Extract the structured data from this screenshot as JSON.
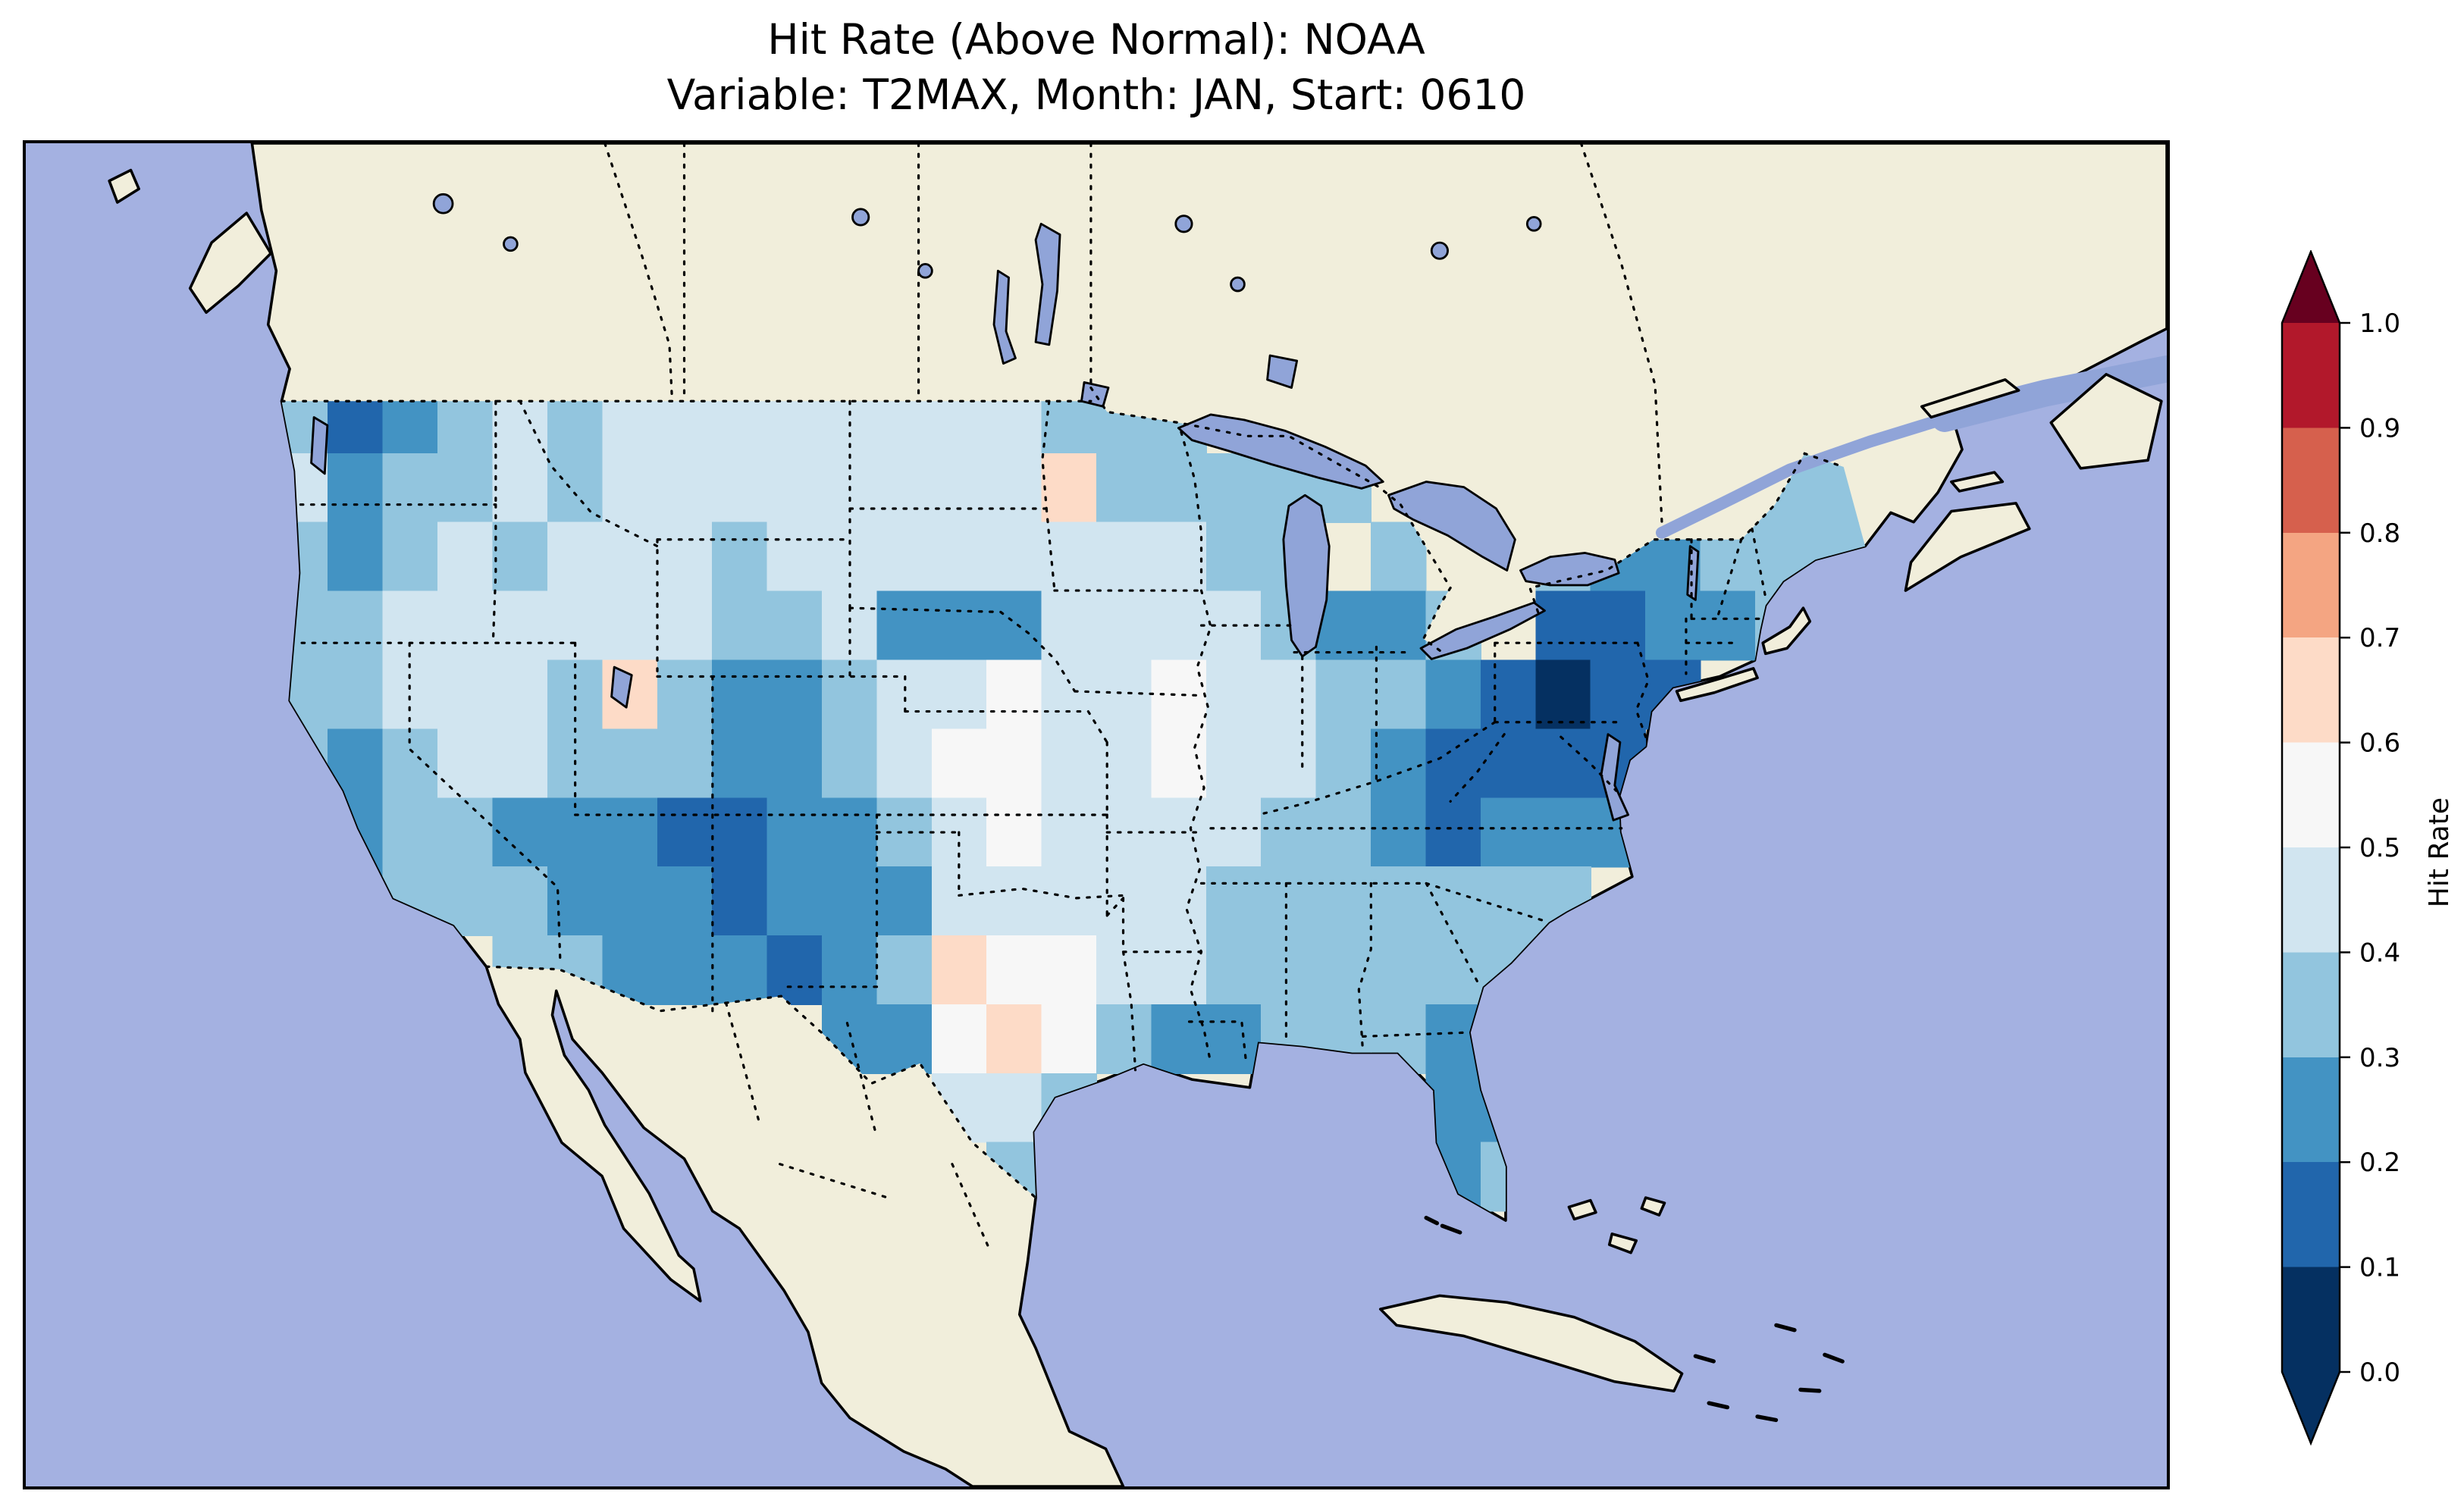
{
  "title": {
    "line1": "Hit Rate (Above Normal): NOAA",
    "line2": "Variable: T2MAX, Month: JAN, Start: 0610"
  },
  "colorbar": {
    "label": "Hit Rate",
    "tick_labels": [
      "1.0",
      "0.9",
      "0.8",
      "0.7",
      "0.6",
      "0.5",
      "0.4",
      "0.3",
      "0.2",
      "0.1",
      "0.0"
    ],
    "segment_colors_top_to_bottom": [
      "#b2182b",
      "#d6604d",
      "#f4a582",
      "#fddbc7",
      "#f7f7f7",
      "#d1e5f0",
      "#92c5de",
      "#4393c3",
      "#2166ac",
      "#053061"
    ],
    "extend_over_color": "#67001f",
    "extend_under_color": "#053061"
  },
  "map_colors": {
    "ocean": "#a4b1e1",
    "land": "#f1eedb",
    "lake": "#90a4d8",
    "coastline": "#000000",
    "border": "#000000"
  },
  "chart_data": {
    "type": "heatmap",
    "title": "Hit Rate (Above Normal): NOAA",
    "subtitle": "Variable: T2MAX, Month: JAN, Start: 0610",
    "source": "NOAA",
    "variable": "T2MAX",
    "month": "JAN",
    "start": "0610",
    "region": "Contiguous United States",
    "colorbar_label": "Hit Rate",
    "value_range": [
      0.0,
      1.0
    ],
    "bin_edges": [
      0.0,
      0.1,
      0.2,
      0.3,
      0.4,
      0.5,
      0.6,
      0.7,
      0.8,
      0.9,
      1.0
    ],
    "bin_colors_low_to_high": [
      "#053061",
      "#2166ac",
      "#4393c3",
      "#92c5de",
      "#d1e5f0",
      "#f7f7f7",
      "#fddbc7",
      "#f4a582",
      "#d6604d",
      "#b2182b"
    ],
    "grid": {
      "lon_start": -125,
      "lon_step": 2,
      "lat_start": 49.5,
      "lat_step": -2,
      "values": [
        [
          0.35,
          0.15,
          0.25,
          0.35,
          0.45,
          0.35,
          0.45,
          0.45,
          0.45,
          0.45,
          0.45,
          0.45,
          0.45,
          0.45,
          0.35,
          0.35,
          0.35,
          null,
          null,
          null,
          null,
          null,
          null,
          null,
          null,
          null,
          null,
          0.35,
          0.35
        ],
        [
          0.45,
          0.25,
          0.35,
          0.35,
          0.45,
          0.35,
          0.45,
          0.45,
          0.45,
          0.45,
          0.45,
          0.45,
          0.45,
          0.45,
          0.65,
          0.35,
          0.35,
          0.35,
          0.35,
          0.35,
          null,
          null,
          null,
          null,
          null,
          null,
          0.35,
          0.35,
          0.35
        ],
        [
          0.35,
          0.25,
          0.35,
          0.45,
          0.35,
          0.45,
          0.45,
          0.45,
          0.35,
          0.45,
          0.45,
          0.45,
          0.45,
          0.45,
          0.45,
          0.45,
          0.45,
          0.35,
          0.35,
          null,
          0.35,
          null,
          null,
          0.35,
          0.25,
          0.25,
          0.35,
          0.35,
          0.35
        ],
        [
          0.35,
          0.35,
          0.45,
          0.45,
          0.45,
          0.45,
          0.45,
          0.45,
          0.35,
          0.35,
          0.45,
          0.25,
          0.25,
          0.25,
          0.45,
          0.45,
          0.45,
          0.45,
          0.35,
          0.25,
          0.25,
          0.35,
          null,
          0.15,
          0.15,
          0.25,
          0.25,
          0.35,
          null
        ],
        [
          0.35,
          0.35,
          0.45,
          0.45,
          0.45,
          0.35,
          0.65,
          0.35,
          0.25,
          0.25,
          0.35,
          0.45,
          0.45,
          0.55,
          0.45,
          0.45,
          0.55,
          0.45,
          0.45,
          0.35,
          0.35,
          0.25,
          0.15,
          0.05,
          0.15,
          0.15,
          null,
          null,
          null
        ],
        [
          0.35,
          0.25,
          0.35,
          0.45,
          0.45,
          0.35,
          0.35,
          0.35,
          0.25,
          0.25,
          0.35,
          0.45,
          0.55,
          0.55,
          0.45,
          0.45,
          0.55,
          0.45,
          0.45,
          0.35,
          0.25,
          0.15,
          0.15,
          0.15,
          0.15,
          null,
          null,
          null,
          null
        ],
        [
          0.35,
          0.25,
          0.35,
          0.35,
          0.25,
          0.25,
          0.25,
          0.15,
          0.15,
          0.25,
          0.25,
          0.35,
          0.45,
          0.55,
          0.45,
          0.45,
          0.45,
          0.45,
          0.35,
          0.35,
          0.25,
          0.15,
          0.25,
          0.25,
          0.25,
          null,
          null,
          null,
          null
        ],
        [
          null,
          0.25,
          0.35,
          0.35,
          0.35,
          0.25,
          0.25,
          0.25,
          0.15,
          0.25,
          0.25,
          0.25,
          0.45,
          0.45,
          0.45,
          0.45,
          0.45,
          0.35,
          0.35,
          0.35,
          0.35,
          0.35,
          0.35,
          0.35,
          null,
          null,
          null,
          null,
          null
        ],
        [
          null,
          null,
          null,
          null,
          0.35,
          0.35,
          0.25,
          0.25,
          0.25,
          0.15,
          0.25,
          0.35,
          0.65,
          0.55,
          0.55,
          0.45,
          0.45,
          0.35,
          0.35,
          0.35,
          0.35,
          0.35,
          0.35,
          null,
          null,
          null,
          null,
          null,
          null
        ],
        [
          null,
          null,
          null,
          null,
          null,
          null,
          null,
          null,
          null,
          null,
          0.25,
          0.25,
          0.55,
          0.65,
          0.55,
          0.35,
          0.25,
          0.25,
          0.35,
          0.35,
          0.35,
          0.25,
          0.35,
          null,
          null,
          null,
          null,
          null,
          null
        ],
        [
          null,
          null,
          null,
          null,
          null,
          null,
          null,
          null,
          null,
          null,
          null,
          null,
          0.45,
          0.45,
          0.35,
          null,
          null,
          null,
          null,
          null,
          null,
          0.25,
          0.25,
          null,
          null,
          null,
          null,
          null,
          null
        ],
        [
          null,
          null,
          null,
          null,
          null,
          null,
          null,
          null,
          null,
          null,
          null,
          null,
          null,
          0.35,
          null,
          null,
          null,
          null,
          null,
          null,
          null,
          0.25,
          0.35,
          null,
          null,
          null,
          null,
          null,
          null
        ]
      ]
    }
  }
}
